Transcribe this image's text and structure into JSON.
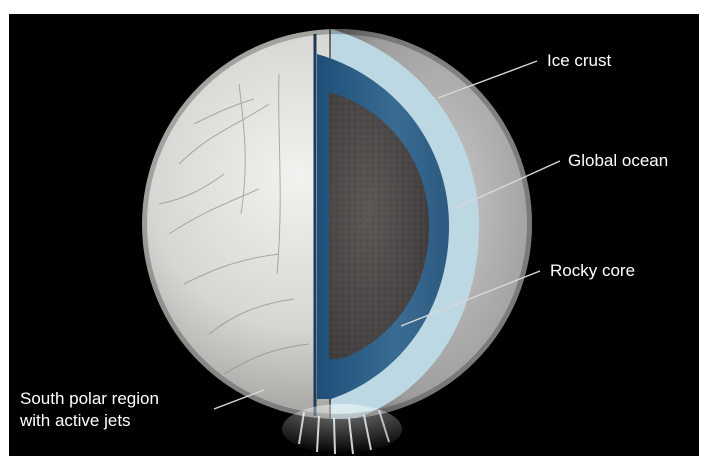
{
  "labels": {
    "ice_crust": "Ice crust",
    "global_ocean": "Global ocean",
    "rocky_core": "Rocky core",
    "south_polar_line1": "South polar region",
    "south_polar_line2": "with active jets"
  },
  "colors": {
    "background": "#000000",
    "ice_surface": "#d9d9d6",
    "ice_crust_band": "#bcd9e3",
    "ocean": "#2f5f86",
    "rocky_core": "#4e4a48",
    "label_text": "#ffffff",
    "leader_line": "#d8d8d8"
  }
}
